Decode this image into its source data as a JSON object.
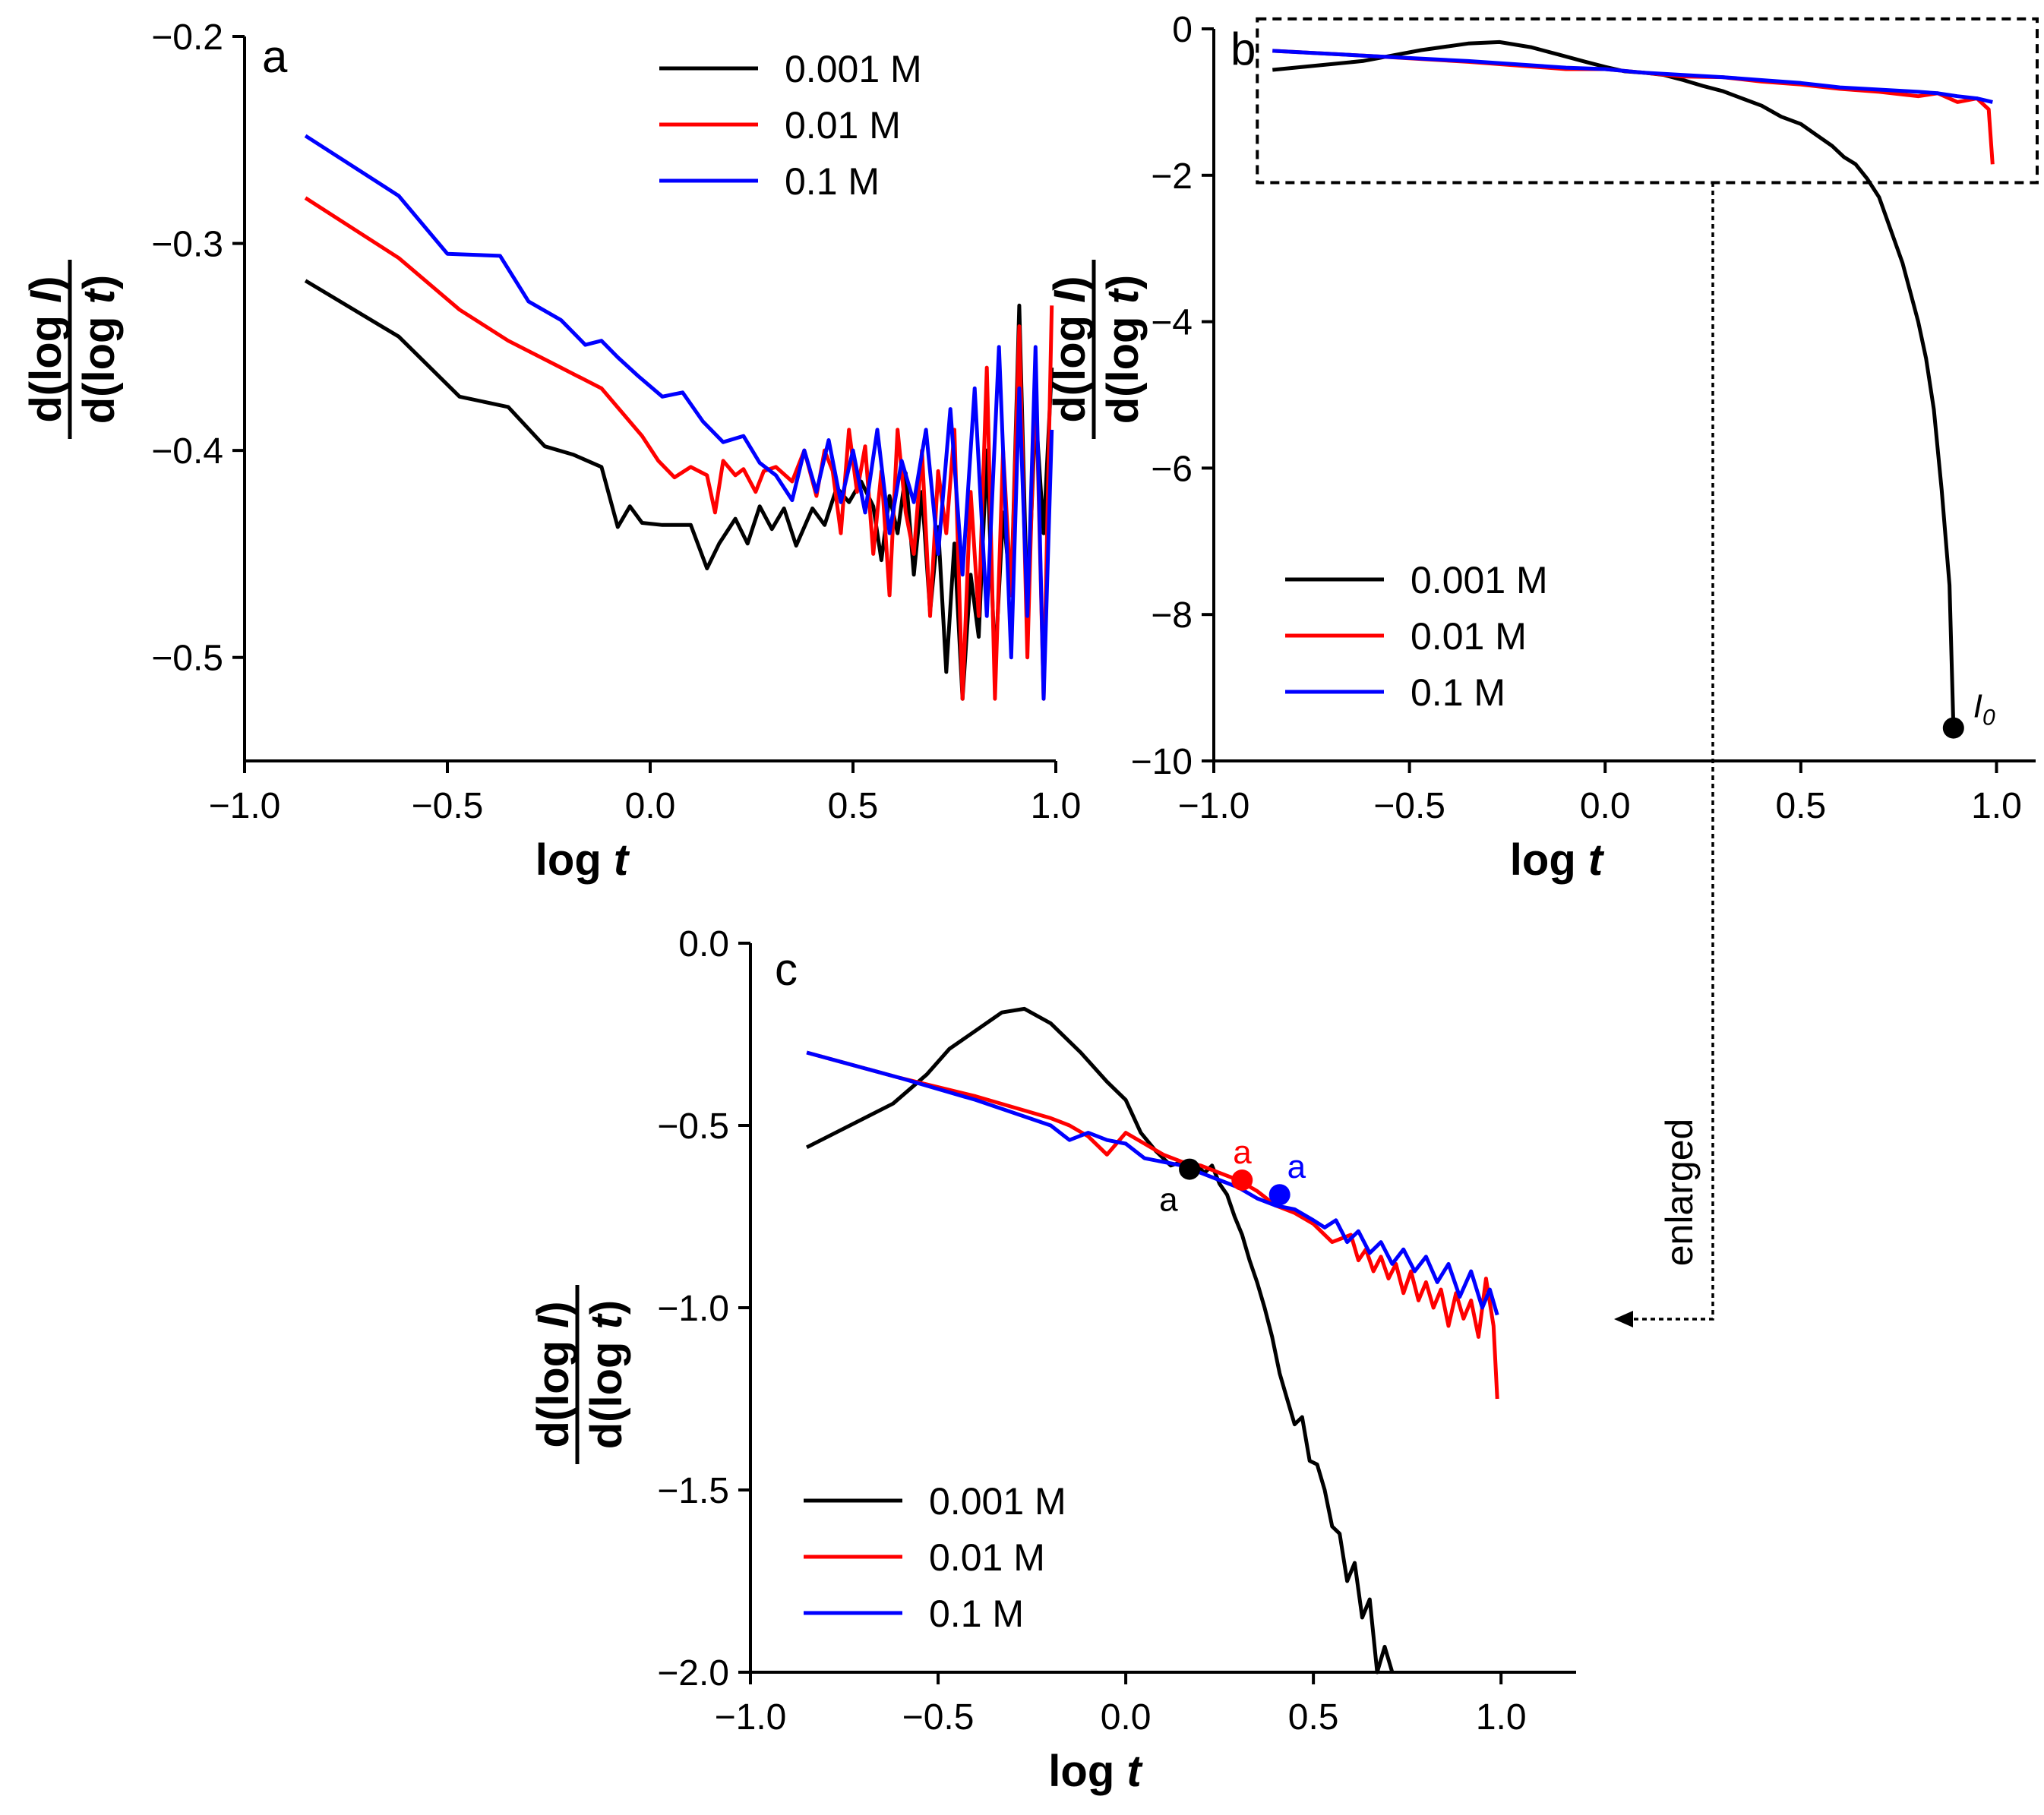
{
  "chart_data": [
    {
      "panel": "a",
      "type": "line",
      "xlabel": "log t",
      "ylabel": "d(log I) / d(log t)",
      "xlim": [
        -1.0,
        1.0
      ],
      "ylim": [
        -0.55,
        -0.2
      ],
      "xticks": [
        -1.0,
        -0.5,
        0.0,
        0.5,
        1.0
      ],
      "xtick_labels": [
        "−1.0",
        "−0.5",
        "0.0",
        "0.5",
        "1.0"
      ],
      "yticks": [
        -0.2,
        -0.3,
        -0.4,
        -0.5
      ],
      "ytick_labels": [
        "−0.2",
        "−0.3",
        "−0.4",
        "−0.5"
      ],
      "legend_placement": "top-right",
      "series": [
        {
          "name": "0.001 M",
          "color": "#000000",
          "x": [
            -0.85,
            -0.62,
            -0.47,
            -0.35,
            -0.26,
            -0.19,
            -0.12,
            -0.08,
            -0.05,
            -0.02,
            0.03,
            0.1,
            0.14,
            0.17,
            0.21,
            0.24,
            0.27,
            0.3,
            0.33,
            0.36,
            0.4,
            0.43,
            0.46,
            0.49,
            0.52,
            0.55,
            0.57,
            0.59,
            0.61,
            0.63,
            0.65,
            0.67,
            0.69,
            0.71,
            0.73,
            0.75,
            0.77,
            0.79,
            0.81,
            0.83,
            0.85,
            0.87,
            0.89,
            0.91,
            0.93,
            0.95,
            0.97,
            0.99
          ],
          "y": [
            -0.318,
            -0.345,
            -0.374,
            -0.379,
            -0.398,
            -0.402,
            -0.408,
            -0.437,
            -0.427,
            -0.435,
            -0.436,
            -0.436,
            -0.457,
            -0.445,
            -0.433,
            -0.445,
            -0.427,
            -0.438,
            -0.428,
            -0.446,
            -0.428,
            -0.436,
            -0.418,
            -0.425,
            -0.415,
            -0.427,
            -0.453,
            -0.422,
            -0.44,
            -0.411,
            -0.46,
            -0.42,
            -0.478,
            -0.437,
            -0.507,
            -0.445,
            -0.52,
            -0.46,
            -0.49,
            -0.4,
            -0.505,
            -0.43,
            -0.47,
            -0.33,
            -0.48,
            -0.38,
            -0.44,
            -0.36
          ]
        },
        {
          "name": "0.01 M",
          "color": "#ff0000",
          "x": [
            -0.85,
            -0.62,
            -0.47,
            -0.35,
            -0.23,
            -0.12,
            -0.02,
            0.02,
            0.06,
            0.1,
            0.14,
            0.16,
            0.18,
            0.21,
            0.23,
            0.26,
            0.28,
            0.31,
            0.35,
            0.38,
            0.41,
            0.43,
            0.45,
            0.47,
            0.49,
            0.51,
            0.53,
            0.55,
            0.57,
            0.59,
            0.61,
            0.63,
            0.65,
            0.67,
            0.69,
            0.71,
            0.73,
            0.75,
            0.77,
            0.79,
            0.81,
            0.83,
            0.85,
            0.87,
            0.89,
            0.91,
            0.93,
            0.95,
            0.97,
            0.99
          ],
          "y": [
            -0.278,
            -0.307,
            -0.332,
            -0.347,
            -0.359,
            -0.37,
            -0.393,
            -0.405,
            -0.413,
            -0.408,
            -0.412,
            -0.43,
            -0.405,
            -0.412,
            -0.409,
            -0.42,
            -0.41,
            -0.408,
            -0.415,
            -0.4,
            -0.422,
            -0.4,
            -0.41,
            -0.44,
            -0.39,
            -0.42,
            -0.398,
            -0.45,
            -0.41,
            -0.47,
            -0.39,
            -0.43,
            -0.45,
            -0.4,
            -0.48,
            -0.41,
            -0.44,
            -0.39,
            -0.52,
            -0.42,
            -0.48,
            -0.36,
            -0.52,
            -0.4,
            -0.47,
            -0.34,
            -0.5,
            -0.36,
            -0.52,
            -0.33
          ]
        },
        {
          "name": "0.1 M",
          "color": "#0000ff",
          "x": [
            -0.85,
            -0.62,
            -0.5,
            -0.37,
            -0.3,
            -0.22,
            -0.16,
            -0.12,
            -0.08,
            -0.03,
            0.03,
            0.08,
            0.13,
            0.18,
            0.23,
            0.27,
            0.31,
            0.35,
            0.38,
            0.41,
            0.44,
            0.47,
            0.5,
            0.53,
            0.56,
            0.59,
            0.62,
            0.65,
            0.68,
            0.71,
            0.74,
            0.77,
            0.8,
            0.83,
            0.86,
            0.89,
            0.91,
            0.93,
            0.95,
            0.97,
            0.99
          ],
          "y": [
            -0.248,
            -0.277,
            -0.305,
            -0.306,
            -0.328,
            -0.337,
            -0.349,
            -0.347,
            -0.355,
            -0.364,
            -0.374,
            -0.372,
            -0.386,
            -0.396,
            -0.393,
            -0.406,
            -0.412,
            -0.424,
            -0.4,
            -0.42,
            -0.395,
            -0.425,
            -0.4,
            -0.43,
            -0.39,
            -0.44,
            -0.405,
            -0.425,
            -0.39,
            -0.45,
            -0.38,
            -0.46,
            -0.37,
            -0.48,
            -0.35,
            -0.5,
            -0.37,
            -0.48,
            -0.35,
            -0.52,
            -0.39
          ]
        }
      ]
    },
    {
      "panel": "b",
      "type": "line",
      "xlabel": "log t",
      "ylabel": "d(log I) / d(log t)",
      "xlim": [
        -1.0,
        1.1
      ],
      "ylim": [
        -10,
        0
      ],
      "xticks": [
        -1.0,
        -0.5,
        0.0,
        0.5,
        1.0
      ],
      "xtick_labels": [
        "−1.0",
        "−0.5",
        "0.0",
        "0.5",
        "1.0"
      ],
      "yticks": [
        0,
        -2,
        -4,
        -6,
        -8,
        -10
      ],
      "ytick_labels": [
        "0",
        "−2",
        "−4",
        "−6",
        "−8",
        "−10"
      ],
      "legend_placement": "bottom-left",
      "annotation": "I",
      "annotation_subscript": "0",
      "annotation_point": [
        0.89,
        -9.55
      ],
      "zoom_box": {
        "x": [
          -0.85,
          1.1
        ],
        "y": [
          -2.1,
          -0.05
        ]
      },
      "series": [
        {
          "name": "0.001 M",
          "color": "#000000",
          "x": [
            -0.85,
            -0.62,
            -0.47,
            -0.35,
            -0.27,
            -0.19,
            -0.12,
            -0.05,
            0.0,
            0.05,
            0.1,
            0.15,
            0.2,
            0.25,
            0.3,
            0.35,
            0.4,
            0.45,
            0.5,
            0.54,
            0.58,
            0.61,
            0.64,
            0.67,
            0.7,
            0.72,
            0.74,
            0.76,
            0.78,
            0.8,
            0.82,
            0.84,
            0.86,
            0.88,
            0.89
          ],
          "y": [
            -0.56,
            -0.44,
            -0.29,
            -0.2,
            -0.18,
            -0.25,
            -0.35,
            -0.45,
            -0.52,
            -0.58,
            -0.6,
            -0.63,
            -0.7,
            -0.78,
            -0.85,
            -0.95,
            -1.05,
            -1.2,
            -1.3,
            -1.45,
            -1.6,
            -1.75,
            -1.85,
            -2.05,
            -2.3,
            -2.6,
            -2.9,
            -3.2,
            -3.6,
            -4.0,
            -4.5,
            -5.2,
            -6.3,
            -7.6,
            -9.55
          ]
        },
        {
          "name": "0.01 M",
          "color": "#ff0000",
          "x": [
            -0.85,
            -0.6,
            -0.35,
            -0.1,
            0.0,
            0.1,
            0.2,
            0.3,
            0.4,
            0.5,
            0.6,
            0.7,
            0.8,
            0.85,
            0.9,
            0.95,
            0.98,
            0.99
          ],
          "y": [
            -0.3,
            -0.37,
            -0.45,
            -0.55,
            -0.55,
            -0.6,
            -0.65,
            -0.66,
            -0.72,
            -0.76,
            -0.82,
            -0.86,
            -0.92,
            -0.88,
            -1.0,
            -0.95,
            -1.1,
            -1.85
          ]
        },
        {
          "name": "0.1 M",
          "color": "#0000ff",
          "x": [
            -0.85,
            -0.6,
            -0.35,
            -0.1,
            0.0,
            0.1,
            0.2,
            0.3,
            0.4,
            0.5,
            0.6,
            0.7,
            0.8,
            0.85,
            0.9,
            0.95,
            0.99
          ],
          "y": [
            -0.3,
            -0.37,
            -0.44,
            -0.53,
            -0.55,
            -0.6,
            -0.63,
            -0.66,
            -0.7,
            -0.74,
            -0.8,
            -0.83,
            -0.86,
            -0.88,
            -0.92,
            -0.95,
            -1.0
          ]
        }
      ]
    },
    {
      "panel": "c",
      "type": "line",
      "xlabel": "log t",
      "ylabel": "d(log I) / d(log t)",
      "xlim": [
        -1.0,
        1.2
      ],
      "ylim": [
        -2.0,
        0.0
      ],
      "xticks": [
        -1.0,
        -0.5,
        0.0,
        0.5,
        1.0
      ],
      "xtick_labels": [
        "−1.0",
        "−0.5",
        "0.0",
        "0.5",
        "1.0"
      ],
      "yticks": [
        0.0,
        -0.5,
        -1.0,
        -1.5,
        -2.0
      ],
      "ytick_labels": [
        "0.0",
        "−0.5",
        "−1.0",
        "−1.5",
        "−2.0"
      ],
      "legend_placement": "bottom-left",
      "enlarged_label": "enlarged",
      "markers": [
        {
          "label": "a",
          "color": "#000000",
          "x": 0.17,
          "y": -0.62
        },
        {
          "label": "a",
          "color": "#ff0000",
          "x": 0.31,
          "y": -0.65
        },
        {
          "label": "a",
          "color": "#0000ff",
          "x": 0.41,
          "y": -0.69
        }
      ],
      "series": [
        {
          "name": "0.001 M",
          "color": "#000000",
          "x": [
            -0.85,
            -0.62,
            -0.53,
            -0.47,
            -0.4,
            -0.33,
            -0.27,
            -0.2,
            -0.12,
            -0.05,
            0.0,
            0.04,
            0.08,
            0.12,
            0.15,
            0.17,
            0.19,
            0.21,
            0.23,
            0.25,
            0.27,
            0.29,
            0.31,
            0.33,
            0.35,
            0.37,
            0.39,
            0.41,
            0.43,
            0.45,
            0.47,
            0.49,
            0.51,
            0.53,
            0.55,
            0.57,
            0.59,
            0.61,
            0.63,
            0.65,
            0.67,
            0.69,
            0.71
          ],
          "y": [
            -0.56,
            -0.44,
            -0.36,
            -0.29,
            -0.24,
            -0.19,
            -0.18,
            -0.22,
            -0.3,
            -0.38,
            -0.43,
            -0.52,
            -0.57,
            -0.61,
            -0.6,
            -0.62,
            -0.61,
            -0.63,
            -0.61,
            -0.66,
            -0.69,
            -0.75,
            -0.8,
            -0.87,
            -0.93,
            -1.0,
            -1.08,
            -1.18,
            -1.25,
            -1.32,
            -1.3,
            -1.42,
            -1.43,
            -1.5,
            -1.6,
            -1.62,
            -1.75,
            -1.7,
            -1.85,
            -1.8,
            -2.0,
            -1.93,
            -2.0
          ]
        },
        {
          "name": "0.01 M",
          "color": "#ff0000",
          "x": [
            -0.85,
            -0.6,
            -0.4,
            -0.2,
            -0.15,
            -0.1,
            -0.05,
            0.0,
            0.05,
            0.1,
            0.15,
            0.2,
            0.25,
            0.3,
            0.35,
            0.4,
            0.45,
            0.5,
            0.55,
            0.6,
            0.62,
            0.64,
            0.66,
            0.68,
            0.7,
            0.72,
            0.74,
            0.76,
            0.78,
            0.8,
            0.82,
            0.84,
            0.86,
            0.88,
            0.9,
            0.92,
            0.94,
            0.96,
            0.98,
            0.99
          ],
          "y": [
            -0.3,
            -0.37,
            -0.42,
            -0.48,
            -0.5,
            -0.53,
            -0.58,
            -0.52,
            -0.55,
            -0.58,
            -0.6,
            -0.61,
            -0.63,
            -0.65,
            -0.68,
            -0.72,
            -0.74,
            -0.77,
            -0.82,
            -0.8,
            -0.87,
            -0.84,
            -0.9,
            -0.86,
            -0.92,
            -0.88,
            -0.96,
            -0.9,
            -0.98,
            -0.93,
            -1.0,
            -0.95,
            -1.05,
            -0.96,
            -1.03,
            -0.98,
            -1.08,
            -0.92,
            -1.05,
            -1.25
          ]
        },
        {
          "name": "0.1 M",
          "color": "#0000ff",
          "x": [
            -0.85,
            -0.6,
            -0.4,
            -0.2,
            -0.15,
            -0.1,
            -0.05,
            0.0,
            0.05,
            0.1,
            0.15,
            0.2,
            0.25,
            0.3,
            0.35,
            0.4,
            0.45,
            0.5,
            0.53,
            0.56,
            0.59,
            0.62,
            0.65,
            0.68,
            0.71,
            0.74,
            0.77,
            0.8,
            0.83,
            0.86,
            0.89,
            0.92,
            0.95,
            0.97,
            0.99
          ],
          "y": [
            -0.3,
            -0.37,
            -0.43,
            -0.5,
            -0.54,
            -0.52,
            -0.54,
            -0.55,
            -0.59,
            -0.6,
            -0.61,
            -0.63,
            -0.65,
            -0.67,
            -0.7,
            -0.72,
            -0.73,
            -0.76,
            -0.78,
            -0.76,
            -0.82,
            -0.79,
            -0.85,
            -0.82,
            -0.88,
            -0.84,
            -0.9,
            -0.86,
            -0.93,
            -0.88,
            -0.97,
            -0.9,
            -1.0,
            -0.95,
            -1.02
          ]
        }
      ]
    }
  ]
}
